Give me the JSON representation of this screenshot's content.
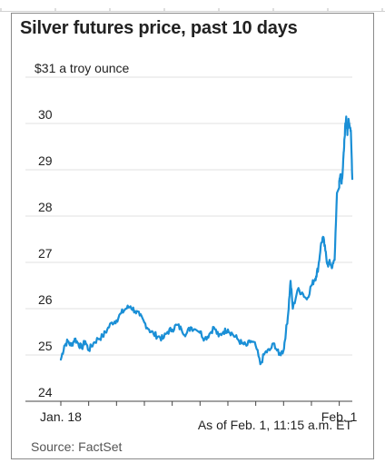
{
  "chart_data": {
    "type": "line",
    "title": "Silver futures price, past 10 days",
    "unit_label": "$31 a troy ounce",
    "y_ticks": [
      30,
      29,
      28,
      27,
      26,
      25,
      24
    ],
    "ylim": [
      24,
      31
    ],
    "x_tick_labels": [
      "Jan. 18",
      "Feb. 1"
    ],
    "x_range": [
      "2021-01-18",
      "2021-02-01T11:15"
    ],
    "note": "As of Feb. 1, 11:15 a.m. ET",
    "source": "Source: FactSet",
    "grid": true,
    "series": [
      {
        "color": "#1a8fd6",
        "x": [
          "2021-01-18T00:00",
          "2021-01-18T03:00",
          "2021-01-18T06:00",
          "2021-01-18T09:00",
          "2021-01-18T12:00",
          "2021-01-18T15:00",
          "2021-01-18T18:00",
          "2021-01-18T21:00",
          "2021-01-19T00:00",
          "2021-01-19T04:00",
          "2021-01-19T08:00",
          "2021-01-19T12:00",
          "2021-01-19T16:00",
          "2021-01-19T20:00",
          "2021-01-20T00:00",
          "2021-01-20T04:00",
          "2021-01-20T08:00",
          "2021-01-20T12:00",
          "2021-01-20T16:00",
          "2021-01-20T20:00",
          "2021-01-21T00:00",
          "2021-01-21T04:00",
          "2021-01-21T08:00",
          "2021-01-21T12:00",
          "2021-01-21T16:00",
          "2021-01-21T20:00",
          "2021-01-22T00:00",
          "2021-01-22T04:00",
          "2021-01-22T08:00",
          "2021-01-22T12:00",
          "2021-01-22T16:00",
          "2021-01-22T20:00",
          "2021-01-25T00:00",
          "2021-01-25T04:00",
          "2021-01-25T08:00",
          "2021-01-25T12:00",
          "2021-01-25T16:00",
          "2021-01-25T20:00",
          "2021-01-26T00:00",
          "2021-01-26T04:00",
          "2021-01-26T08:00",
          "2021-01-26T12:00",
          "2021-01-26T16:00",
          "2021-01-26T20:00",
          "2021-01-27T00:00",
          "2021-01-27T04:00",
          "2021-01-27T08:00",
          "2021-01-27T12:00",
          "2021-01-27T16:00",
          "2021-01-27T20:00",
          "2021-01-28T00:00",
          "2021-01-28T02:00",
          "2021-01-28T04:00",
          "2021-01-28T06:00",
          "2021-01-28T08:00",
          "2021-01-28T12:00",
          "2021-01-28T16:00",
          "2021-01-28T20:00",
          "2021-01-29T00:00",
          "2021-01-29T02:00",
          "2021-01-29T04:00",
          "2021-01-29T06:00",
          "2021-01-29T08:00",
          "2021-01-29T10:00",
          "2021-01-29T12:00",
          "2021-01-29T14:00",
          "2021-01-29T16:00",
          "2021-01-29T18:00",
          "2021-01-29T20:00",
          "2021-01-29T22:00",
          "2021-02-01T00:00",
          "2021-02-01T01:00",
          "2021-02-01T02:00",
          "2021-02-01T03:00",
          "2021-02-01T04:00",
          "2021-02-01T05:00",
          "2021-02-01T06:00",
          "2021-02-01T07:00",
          "2021-02-01T08:00",
          "2021-02-01T09:00",
          "2021-02-01T10:00",
          "2021-02-01T11:15"
        ],
        "y": [
          24.9,
          25.2,
          25.3,
          25.2,
          25.35,
          25.25,
          25.15,
          25.3,
          25.1,
          25.25,
          25.35,
          25.4,
          25.55,
          25.7,
          25.75,
          25.9,
          26.0,
          26.05,
          25.95,
          25.85,
          25.7,
          25.55,
          25.45,
          25.4,
          25.35,
          25.5,
          25.55,
          25.65,
          25.55,
          25.45,
          25.6,
          25.55,
          25.5,
          25.35,
          25.45,
          25.6,
          25.4,
          25.5,
          25.55,
          25.45,
          25.35,
          25.25,
          25.2,
          25.3,
          25.2,
          24.8,
          25.05,
          25.1,
          25.25,
          25.0,
          25.1,
          25.5,
          25.9,
          26.6,
          26.0,
          26.4,
          26.35,
          26.2,
          26.5,
          26.6,
          26.7,
          26.9,
          27.35,
          27.55,
          27.25,
          26.95,
          27.0,
          26.9,
          27.05,
          28.5,
          28.75,
          28.9,
          28.7,
          29.0,
          29.4,
          29.9,
          30.15,
          29.75,
          30.1,
          29.95,
          29.85,
          28.8
        ]
      }
    ]
  }
}
